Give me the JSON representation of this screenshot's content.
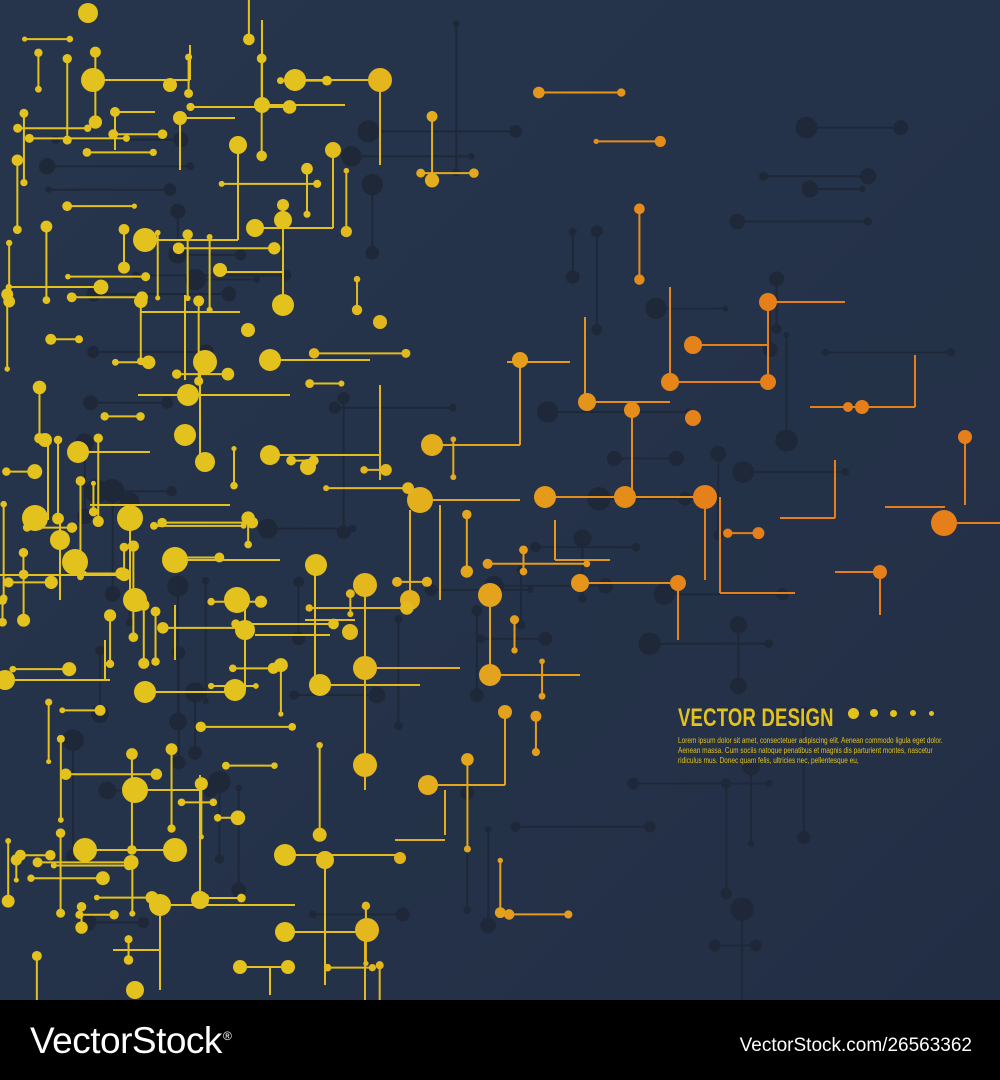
{
  "artwork": {
    "headline": "VECTOR DESIGN",
    "body_text": "Lorem ipsum dolor sit amet, consectetuer adipiscing elit. Aenean commodo ligula eget dolor. Aenean massa. Cum sociis natoque penatibus et magnis dis parturient montes, nascetur ridiculus mus. Donec quam felis, ultricies nec, pellentesque eu,",
    "colors": {
      "background": "#25324a",
      "network_yellow": "#e3c21e",
      "network_orange": "#e67e1a",
      "shadow_nodes": "#1e2839"
    }
  },
  "watermark": {
    "logo": "VectorStock",
    "registered_mark": "®",
    "image_id": "VectorStock.com/26563362"
  }
}
